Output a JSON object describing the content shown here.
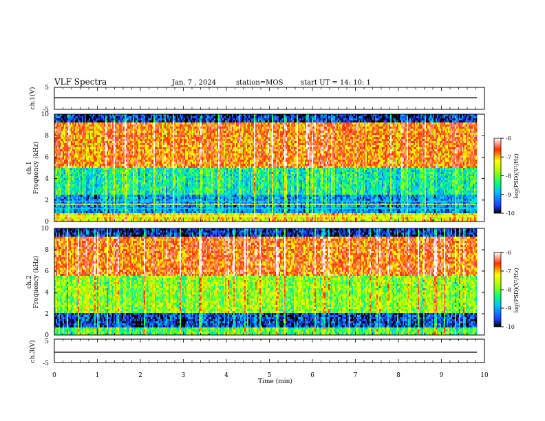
{
  "header": {
    "title": "VLF Spectra",
    "date": "Jan. 7 , 2024",
    "station": "station=MOS",
    "start": "start UT =  14: 10: 1"
  },
  "chart_data": [
    {
      "type": "line",
      "name": "ch1-waveform",
      "ylabel": "ch.1(V)",
      "ylim": [
        -5,
        5
      ],
      "yticks": [
        "5",
        "-5"
      ],
      "baseline": 0
    },
    {
      "type": "heatmap",
      "name": "ch1-spectrogram",
      "ylabel": "ch.1\nFrequency (kHz)",
      "ylim": [
        0,
        10
      ],
      "yticks": [
        "0",
        "2",
        "4",
        "6",
        "8",
        "10"
      ],
      "colorbar": {
        "ticks": [
          "-6",
          "-7",
          "-8",
          "-9",
          "-10"
        ],
        "label": "log(PSD)(V²/Hz)"
      },
      "bands": [
        {
          "from": 9.2,
          "to": 10.0,
          "level": -9.7
        },
        {
          "from": 5.0,
          "to": 9.2,
          "level": -7.0
        },
        {
          "from": 2.5,
          "to": 5.0,
          "level": -8.6
        },
        {
          "from": 0.8,
          "to": 2.5,
          "level": -9.2
        },
        {
          "from": 0.0,
          "to": 0.8,
          "level": -7.5
        }
      ]
    },
    {
      "type": "heatmap",
      "name": "ch2-spectrogram",
      "ylabel": "ch.2\nFrequency (kHz)",
      "ylim": [
        0,
        10
      ],
      "yticks": [
        "0",
        "2",
        "4",
        "6",
        "8",
        "10"
      ],
      "colorbar": {
        "ticks": [
          "-6",
          "-7",
          "-8",
          "-9",
          "-10"
        ],
        "label": "log(PSD)(V²/Hz)"
      },
      "bands": [
        {
          "from": 9.2,
          "to": 10.0,
          "level": -9.7
        },
        {
          "from": 5.5,
          "to": 9.2,
          "level": -6.9
        },
        {
          "from": 2.0,
          "to": 5.5,
          "level": -8.0
        },
        {
          "from": 0.8,
          "to": 2.0,
          "level": -9.6
        },
        {
          "from": 0.0,
          "to": 0.8,
          "level": -8.3
        }
      ]
    },
    {
      "type": "line",
      "name": "ch3-waveform",
      "ylabel": "ch.3(V)",
      "ylim": [
        -5,
        5
      ],
      "yticks": [
        "5",
        "-5"
      ],
      "baseline": 0
    }
  ],
  "xaxis": {
    "label": "Time (min)",
    "range": [
      0,
      10
    ],
    "data_end": 9.83,
    "ticks": [
      "0",
      "1",
      "2",
      "3",
      "4",
      "5",
      "6",
      "7",
      "8",
      "9",
      "10"
    ]
  }
}
